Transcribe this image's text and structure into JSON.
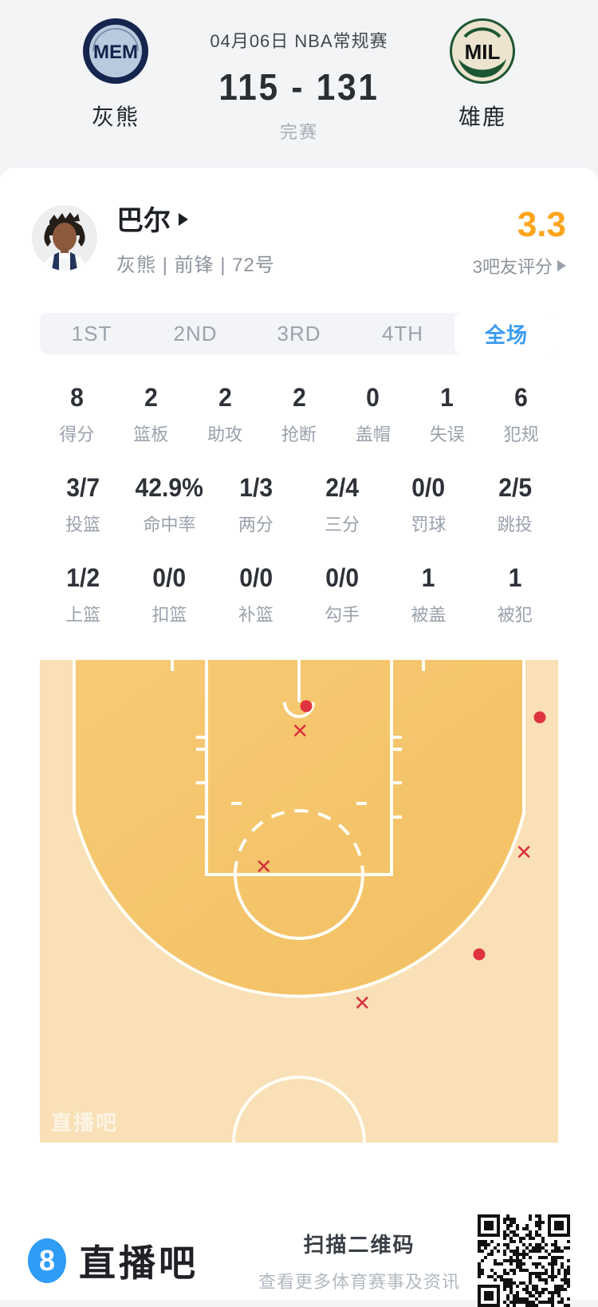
{
  "header": {
    "date_title": "04月06日 NBA常规赛",
    "score": "115 - 131",
    "status": "完赛",
    "home_team": {
      "abbr": "MEM",
      "name": "灰熊"
    },
    "away_team": {
      "abbr": "MIL",
      "name": "雄鹿"
    }
  },
  "player": {
    "name": "巴尔",
    "meta": "灰熊 | 前锋 | 72号",
    "rating": "3.3",
    "rating_label": "3吧友评分"
  },
  "tabs": [
    {
      "label": "1ST",
      "active": false
    },
    {
      "label": "2ND",
      "active": false
    },
    {
      "label": "3RD",
      "active": false
    },
    {
      "label": "4TH",
      "active": false
    },
    {
      "label": "全场",
      "active": true
    }
  ],
  "stats": {
    "row1": [
      {
        "v": "8",
        "l": "得分"
      },
      {
        "v": "2",
        "l": "篮板"
      },
      {
        "v": "2",
        "l": "助攻"
      },
      {
        "v": "2",
        "l": "抢断"
      },
      {
        "v": "0",
        "l": "盖帽"
      },
      {
        "v": "1",
        "l": "失误"
      },
      {
        "v": "6",
        "l": "犯规"
      }
    ],
    "row2": [
      {
        "v": "3/7",
        "l": "投篮"
      },
      {
        "v": "42.9%",
        "l": "命中率"
      },
      {
        "v": "1/3",
        "l": "两分"
      },
      {
        "v": "2/4",
        "l": "三分"
      },
      {
        "v": "0/0",
        "l": "罚球"
      },
      {
        "v": "2/5",
        "l": "跳投"
      }
    ],
    "row3": [
      {
        "v": "1/2",
        "l": "上篮"
      },
      {
        "v": "0/0",
        "l": "扣篮"
      },
      {
        "v": "0/0",
        "l": "补篮"
      },
      {
        "v": "0/0",
        "l": "勾手"
      },
      {
        "v": "1",
        "l": "被盖"
      },
      {
        "v": "1",
        "l": "被犯"
      }
    ]
  },
  "shot_chart": {
    "court_colors": {
      "inner": "#f5c46b",
      "outer": "#f9e0b6",
      "lines": "#fffef7"
    },
    "marker_color": "#e03440",
    "markers": [
      {
        "result": "made",
        "x": 51.4,
        "y": 9.6
      },
      {
        "result": "missed",
        "x": 50.2,
        "y": 14.9
      },
      {
        "result": "made",
        "x": 96.5,
        "y": 11.9
      },
      {
        "result": "missed",
        "x": 43.2,
        "y": 43.0
      },
      {
        "result": "missed",
        "x": 93.4,
        "y": 40.0
      },
      {
        "result": "made",
        "x": 84.8,
        "y": 61.0
      },
      {
        "result": "missed",
        "x": 62.2,
        "y": 71.2
      }
    ],
    "watermark": "直播吧"
  },
  "footer": {
    "logo_char": "8",
    "brand": "直播吧",
    "qr_title": "扫描二维码",
    "qr_subtitle": "查看更多体育赛事及资讯"
  },
  "colors": {
    "accent_blue": "#3b9bf3",
    "rating_orange": "#ffa41c",
    "shot_red": "#e03440",
    "brand_blue": "#2f9cf6"
  }
}
